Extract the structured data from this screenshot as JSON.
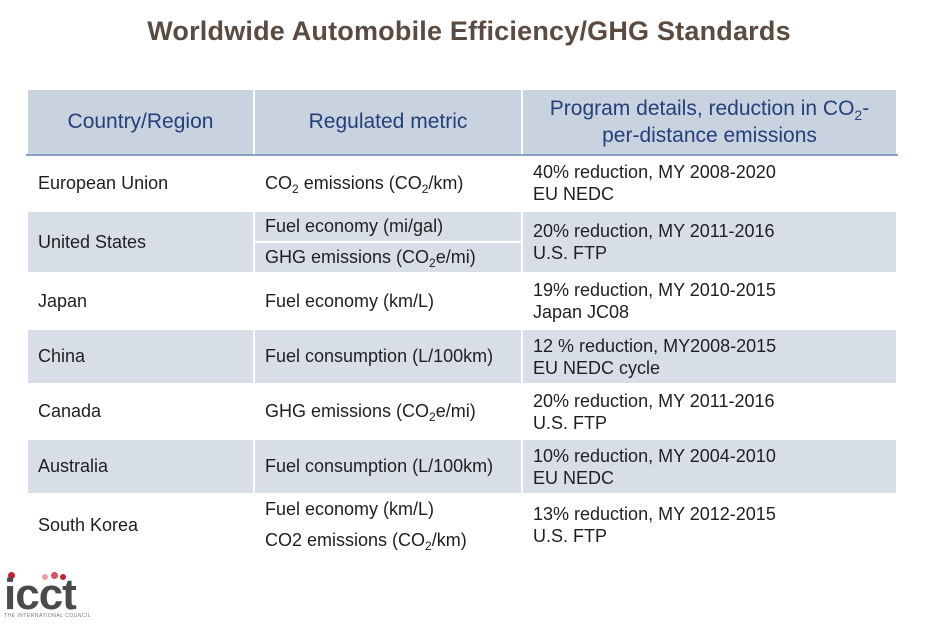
{
  "title": "Worldwide Automobile Efficiency/GHG Standards",
  "table": {
    "headers": {
      "country": "Country/Region",
      "metric": "Regulated metric",
      "details_pre": "Program details, reduction in CO",
      "details_sub": "2",
      "details_post": "-per-distance emissions"
    },
    "rows": [
      {
        "country": "European Union",
        "metrics": [
          {
            "pre": "CO",
            "sub": "2",
            "mid": " emissions (CO",
            "sub2": "2",
            "post": "/km)"
          }
        ],
        "detail_line1": "40% reduction, MY 2008-2020",
        "detail_line2": "EU NEDC"
      },
      {
        "country": "United States",
        "metrics": [
          {
            "pre": "Fuel economy (mi/gal)"
          },
          {
            "pre": "GHG emissions (CO",
            "sub": "2",
            "post": "e/mi)"
          }
        ],
        "detail_line1": "20% reduction, MY 2011-2016",
        "detail_line2": "U.S. FTP"
      },
      {
        "country": "Japan",
        "metrics": [
          {
            "pre": "Fuel economy (km/L)"
          }
        ],
        "detail_line1": "19% reduction, MY 2010-2015",
        "detail_line2": "Japan JC08"
      },
      {
        "country": "China",
        "metrics": [
          {
            "pre": "Fuel consumption (L/100km)"
          }
        ],
        "detail_line1": "12 % reduction, MY2008-2015",
        "detail_line2": "EU NEDC cycle"
      },
      {
        "country": "Canada",
        "metrics": [
          {
            "pre": "GHG emissions (CO",
            "sub": "2",
            "post": "e/mi)"
          }
        ],
        "detail_line1": "20% reduction, MY 2011-2016",
        "detail_line2": "U.S. FTP"
      },
      {
        "country": "Australia",
        "metrics": [
          {
            "pre": "Fuel consumption (L/100km)"
          }
        ],
        "detail_line1": "10% reduction, MY 2004-2010",
        "detail_line2": "EU NEDC"
      },
      {
        "country": "South Korea",
        "metrics": [
          {
            "pre": "Fuel economy (km/L)"
          },
          {
            "pre": "CO2 emissions (CO",
            "sub": "2",
            "post": "/km)"
          }
        ],
        "detail_line1": "13% reduction, MY 2012-2015",
        "detail_line2": "U.S. FTP"
      }
    ]
  },
  "logo": {
    "text": "icct",
    "tagline": "THE INTERNATIONAL COUNCIL",
    "dot_colors": [
      "#c8202f",
      "#e8a0a6",
      "#d9515d",
      "#c8202f"
    ]
  },
  "colors": {
    "title": "#5a4a3f",
    "header_bg": "#c9d3e0",
    "header_text": "#23407a",
    "band_bg": "#d8dee8"
  }
}
